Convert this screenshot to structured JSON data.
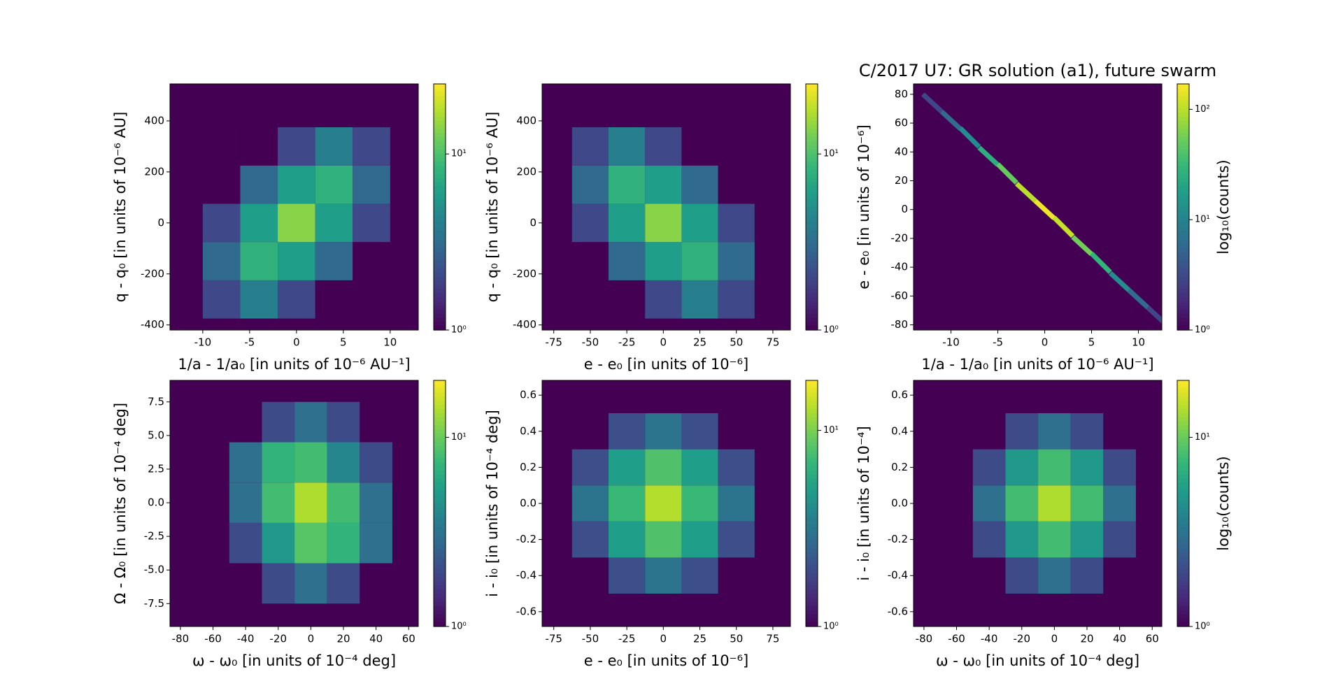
{
  "chart_data": [
    {
      "type": "hexbin",
      "xlabel": "1/a - 1/a₀ [in units of 10⁻⁶ AU⁻¹]",
      "ylabel": "q - q₀ [in units of 10⁻⁶ AU]",
      "colormap": "viridis",
      "xlim": [
        -13.5,
        13
      ],
      "xticks": [
        -10,
        -5,
        0,
        5,
        10
      ],
      "ylim": [
        -420,
        545
      ],
      "yticks": [
        -400,
        -200,
        0,
        200,
        400
      ],
      "hex_x": [
        -8,
        -4,
        0,
        4,
        8
      ],
      "hex_y": [
        -300,
        -150,
        0,
        150,
        300
      ],
      "counts": [
        [
          2,
          4,
          2,
          1,
          1
        ],
        [
          3,
          8,
          6,
          3,
          1
        ],
        [
          2,
          6,
          14,
          6,
          2
        ],
        [
          1,
          3,
          6,
          8,
          3
        ],
        [
          1,
          1,
          2,
          4,
          2
        ]
      ],
      "clim": [
        1,
        25
      ],
      "cticks": [
        {
          "value": 1,
          "label": "10⁰"
        },
        {
          "value": 10,
          "label": "10¹"
        }
      ]
    },
    {
      "type": "hexbin",
      "xlabel": "e - e₀ [in units of 10⁻⁶]",
      "ylabel": "q - q₀ [in units of 10⁻⁶ AU]",
      "colormap": "viridis",
      "xlim": [
        -83,
        87
      ],
      "xticks": [
        -75,
        -50,
        -25,
        0,
        25,
        50,
        75
      ],
      "ylim": [
        -420,
        545
      ],
      "yticks": [
        -400,
        -200,
        0,
        200,
        400
      ],
      "hex_x": [
        -50,
        -25,
        0,
        25,
        50
      ],
      "hex_y": [
        -300,
        -150,
        0,
        150,
        300
      ],
      "counts": [
        [
          1,
          1,
          2,
          4,
          2
        ],
        [
          1,
          3,
          6,
          8,
          3
        ],
        [
          2,
          6,
          14,
          6,
          2
        ],
        [
          3,
          8,
          6,
          3,
          1
        ],
        [
          2,
          4,
          2,
          1,
          1
        ]
      ],
      "clim": [
        1,
        25
      ],
      "cticks": [
        {
          "value": 1,
          "label": "10⁰"
        },
        {
          "value": 10,
          "label": "10¹"
        }
      ]
    },
    {
      "type": "hexbin",
      "title": "C/2017 U7: GR solution (a1), future swarm",
      "xlabel": "1/a - 1/a₀ [in units of 10⁻⁶ AU⁻¹]",
      "ylabel": "e - e₀ [in units of 10⁻⁶]",
      "colormap": "viridis",
      "xlim": [
        -14,
        12.5
      ],
      "xticks": [
        -10,
        -5,
        0,
        5,
        10
      ],
      "ylim": [
        -83.6,
        87.2
      ],
      "yticks": [
        -80,
        -60,
        -40,
        -20,
        0,
        20,
        40,
        60,
        80
      ],
      "x": [
        -12,
        -10,
        -8,
        -6,
        -4,
        -2,
        0,
        2,
        4,
        6,
        8,
        10,
        12
      ],
      "y": [
        74,
        62,
        50,
        37,
        25,
        12,
        0,
        -12,
        -25,
        -37,
        -50,
        -62,
        -74
      ],
      "counts": [
        3,
        6,
        12,
        25,
        50,
        100,
        150,
        110,
        55,
        28,
        12,
        6,
        3
      ],
      "clim": [
        1,
        170
      ],
      "cticks": [
        {
          "value": 1,
          "label": "10⁰"
        },
        {
          "value": 10,
          "label": "10¹"
        },
        {
          "value": 100,
          "label": "10²"
        }
      ],
      "colorbar_label": "log₁₀(counts)"
    },
    {
      "type": "hexbin",
      "xlabel": "ω - ω₀ [in units of 10⁻⁴ deg]",
      "ylabel": "Ω - Ω₀ [in units of 10⁻⁴ deg]",
      "colormap": "viridis",
      "xlim": [
        -86.4,
        65.9
      ],
      "xticks": [
        -80,
        -60,
        -40,
        -20,
        0,
        20,
        40,
        60
      ],
      "ylim": [
        -9.2,
        9.1
      ],
      "yticks": [
        -7.5,
        {
          "value": -5,
          "label": "-5.0"
        },
        -2.5,
        {
          "value": 0,
          "label": "0.0"
        },
        2.5,
        {
          "value": 5,
          "label": "5.0"
        },
        7.5
      ],
      "hex_x": [
        -40,
        -20,
        0,
        20,
        40
      ],
      "hex_y": [
        -6,
        -3,
        0,
        3,
        6
      ],
      "counts": [
        [
          1,
          2,
          3,
          2,
          1
        ],
        [
          2,
          5,
          9,
          7,
          3
        ],
        [
          3,
          8,
          14,
          8,
          3
        ],
        [
          3,
          7,
          8,
          4,
          2
        ],
        [
          1,
          2,
          3,
          2,
          1
        ]
      ],
      "clim": [
        1,
        20
      ],
      "cticks": [
        {
          "value": 1,
          "label": "10⁰"
        },
        {
          "value": 10,
          "label": "10¹"
        }
      ]
    },
    {
      "type": "hexbin",
      "xlabel": "e - e₀ [in units of 10⁻⁶]",
      "ylabel": "i - i₀ [in units of 10⁻⁴ deg]",
      "colormap": "viridis",
      "xlim": [
        -83,
        87
      ],
      "xticks": [
        -75,
        -50,
        -25,
        0,
        25,
        50,
        75
      ],
      "ylim": [
        -0.682,
        0.682
      ],
      "yticks": [
        -0.6,
        -0.4,
        -0.2,
        {
          "value": 0,
          "label": "0.0"
        },
        0.2,
        0.4,
        0.6
      ],
      "hex_x": [
        -50,
        -25,
        0,
        25,
        50
      ],
      "hex_y": [
        -0.4,
        -0.2,
        0,
        0.2,
        0.4
      ],
      "counts": [
        [
          1,
          2,
          3,
          2,
          1
        ],
        [
          2,
          5,
          8,
          5,
          2
        ],
        [
          3,
          7,
          13,
          7,
          3
        ],
        [
          2,
          5,
          8,
          5,
          2
        ],
        [
          1,
          2,
          3,
          2,
          1
        ]
      ],
      "clim": [
        1,
        18
      ],
      "cticks": [
        {
          "value": 1,
          "label": "10⁰"
        },
        {
          "value": 10,
          "label": "10¹"
        }
      ]
    },
    {
      "type": "hexbin",
      "xlabel": "ω - ω₀ [in units of 10⁻⁴ deg]",
      "ylabel": "i - i₀ [in units of 10⁻⁴]",
      "colormap": "viridis",
      "xlim": [
        -86.4,
        65.9
      ],
      "xticks": [
        -80,
        -60,
        -40,
        -20,
        0,
        20,
        40,
        60
      ],
      "ylim": [
        -0.682,
        0.682
      ],
      "yticks": [
        -0.6,
        -0.4,
        -0.2,
        {
          "value": 0,
          "label": "0.0"
        },
        0.2,
        0.4,
        0.6
      ],
      "hex_x": [
        -40,
        -20,
        0,
        20,
        40
      ],
      "hex_y": [
        -0.4,
        -0.2,
        0,
        0.2,
        0.4
      ],
      "counts": [
        [
          1,
          2,
          3,
          2,
          1
        ],
        [
          2,
          5,
          8,
          5,
          2
        ],
        [
          3,
          8,
          14,
          8,
          3
        ],
        [
          2,
          5,
          8,
          5,
          2
        ],
        [
          1,
          2,
          3,
          2,
          1
        ]
      ],
      "clim": [
        1,
        20
      ],
      "cticks": [
        {
          "value": 1,
          "label": "10⁰"
        },
        {
          "value": 10,
          "label": "10¹"
        }
      ],
      "colorbar_label": "log₁₀(counts)"
    }
  ]
}
